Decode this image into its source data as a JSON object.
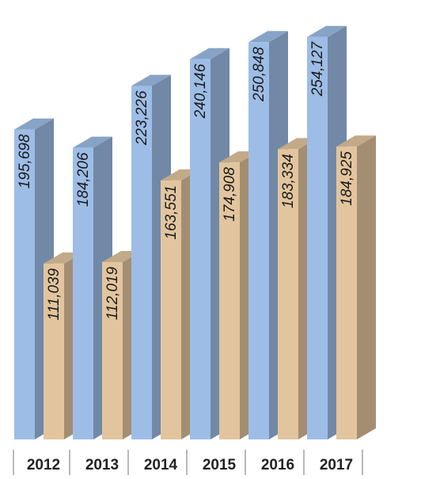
{
  "chart_data": {
    "type": "bar",
    "categories": [
      "2012",
      "2013",
      "2014",
      "2015",
      "2016",
      "2017"
    ],
    "series": [
      {
        "values": [
          195698,
          184206,
          223226,
          240146,
          250848,
          254127
        ],
        "color": "#9dbde6"
      },
      {
        "values": [
          111039,
          112019,
          163551,
          174908,
          183334,
          184925
        ],
        "color": "#e2c59e"
      }
    ],
    "value_labels": {
      "series_1": [
        "195,698",
        "184,206",
        "223,226",
        "240,146",
        "250,848",
        "254,127"
      ],
      "series_2": [
        "111,039",
        "112,019",
        "163,551",
        "174,908",
        "183,334",
        "184,925"
      ]
    },
    "title": "",
    "xlabel": "",
    "ylabel": "",
    "legend": "none",
    "grid": false,
    "style": "3d-grouped-bar",
    "label_orientation": "vertical"
  }
}
